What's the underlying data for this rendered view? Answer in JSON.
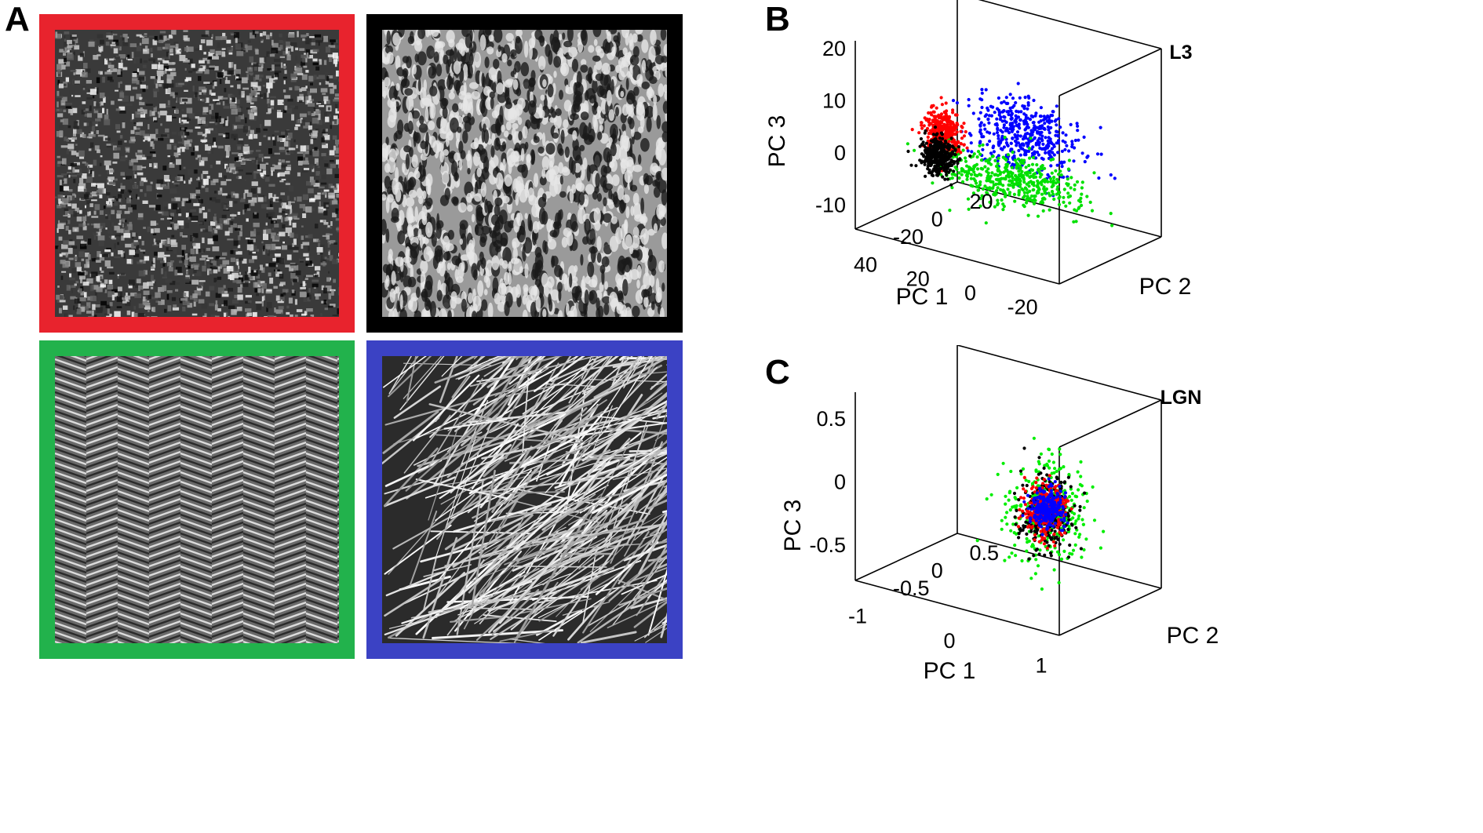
{
  "figure": {
    "panel_a": {
      "letter": "A",
      "textures": [
        {
          "id": "red",
          "color": "#e8232d",
          "kind": "noise"
        },
        {
          "id": "black",
          "color": "#000000",
          "kind": "cells"
        },
        {
          "id": "green",
          "color": "#22b24c",
          "kind": "herringbone"
        },
        {
          "id": "blue",
          "color": "#3b42c4",
          "kind": "straw"
        }
      ]
    },
    "panel_b": {
      "letter": "B"
    },
    "panel_c": {
      "letter": "C"
    }
  },
  "chart_data": [
    {
      "type": "scatter",
      "panel": "B",
      "title": "L3",
      "xlabel": "PC 1",
      "ylabel": "PC 2",
      "zlabel": "PC 3",
      "x_ticks": [
        "40",
        "20",
        "0",
        "-20"
      ],
      "y_ticks": [
        "20",
        "0",
        "-20"
      ],
      "z_ticks": [
        "20",
        "10",
        "0",
        "-10"
      ],
      "xlim": [
        -30,
        45
      ],
      "ylim": [
        -25,
        30
      ],
      "zlim": [
        -14,
        28
      ],
      "grid": false,
      "series": [
        {
          "color": "#0000ff",
          "center": [
            12,
            5,
            8
          ],
          "spread": [
            10,
            3,
            4
          ],
          "count": 450
        },
        {
          "color": "#00e000",
          "center": [
            3,
            12,
            -5
          ],
          "spread": [
            12,
            4,
            3
          ],
          "count": 450
        },
        {
          "color": "#ff0000",
          "center": [
            -16,
            2,
            5
          ],
          "spread": [
            3,
            2,
            2.5
          ],
          "count": 350
        },
        {
          "color": "#000000",
          "center": [
            -22,
            8,
            -3
          ],
          "spread": [
            3,
            2,
            2
          ],
          "count": 350
        }
      ]
    },
    {
      "type": "scatter",
      "panel": "C",
      "title": "LGN",
      "xlabel": "PC 1",
      "ylabel": "PC 2",
      "zlabel": "PC 3",
      "x_ticks": [
        "-1",
        "0",
        "1"
      ],
      "y_ticks": [
        "0.5",
        "0",
        "-0.5"
      ],
      "z_ticks": [
        "0.5",
        "0",
        "-0.5"
      ],
      "xlim": [
        -1.2,
        1.2
      ],
      "ylim": [
        -0.8,
        0.8
      ],
      "zlim": [
        -0.6,
        0.75
      ],
      "grid": false,
      "series": [
        {
          "color": "#00ee00",
          "center": [
            0.45,
            0,
            0
          ],
          "spread": [
            0.18,
            0.2,
            0.18
          ],
          "count": 350
        },
        {
          "color": "#000000",
          "center": [
            0.45,
            0,
            0
          ],
          "spread": [
            0.13,
            0.14,
            0.13
          ],
          "count": 260
        },
        {
          "color": "#ff0000",
          "center": [
            0.45,
            0,
            0
          ],
          "spread": [
            0.09,
            0.1,
            0.09
          ],
          "count": 300
        },
        {
          "color": "#0000ff",
          "center": [
            0.47,
            0,
            0.02
          ],
          "spread": [
            0.07,
            0.08,
            0.07
          ],
          "count": 260
        }
      ]
    }
  ]
}
